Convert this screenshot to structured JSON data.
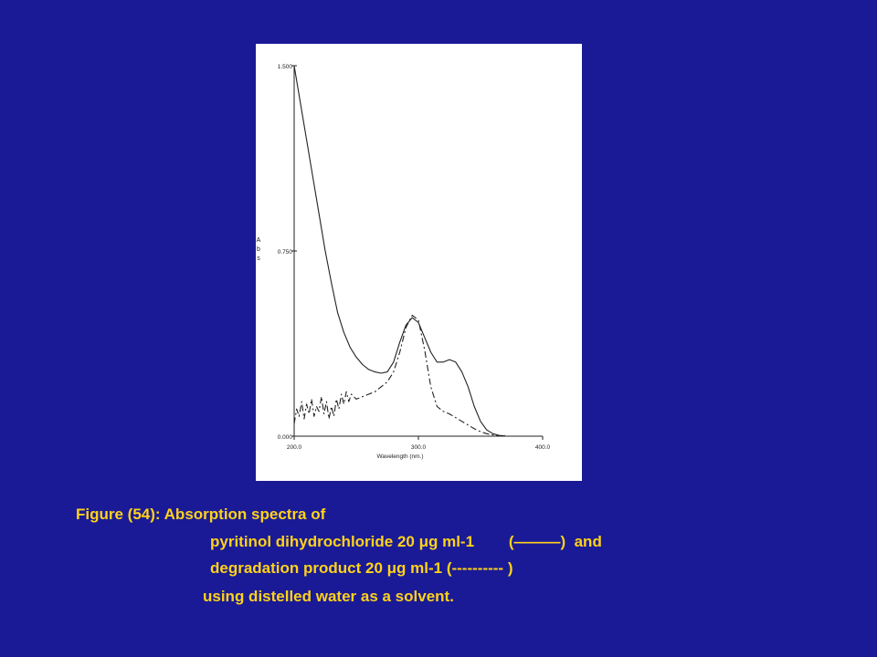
{
  "chart_data": {
    "type": "line",
    "xlabel": "Wavelength (nm.)",
    "ylabel": "Abs",
    "xlim": [
      200,
      400
    ],
    "ylim": [
      0,
      1.5
    ],
    "x_ticks": [
      "200.0",
      "300.0",
      "400.0"
    ],
    "y_ticks": [
      "0.000",
      "0.750",
      "1.500"
    ],
    "grid": false,
    "series": [
      {
        "style": "solid",
        "points": [
          [
            200,
            1.5
          ],
          [
            205,
            1.35
          ],
          [
            210,
            1.2
          ],
          [
            215,
            1.05
          ],
          [
            220,
            0.9
          ],
          [
            225,
            0.75
          ],
          [
            230,
            0.62
          ],
          [
            235,
            0.5
          ],
          [
            240,
            0.42
          ],
          [
            245,
            0.36
          ],
          [
            250,
            0.32
          ],
          [
            255,
            0.29
          ],
          [
            260,
            0.27
          ],
          [
            265,
            0.26
          ],
          [
            270,
            0.255
          ],
          [
            275,
            0.26
          ],
          [
            280,
            0.3
          ],
          [
            285,
            0.38
          ],
          [
            290,
            0.45
          ],
          [
            295,
            0.48
          ],
          [
            300,
            0.46
          ],
          [
            305,
            0.4
          ],
          [
            310,
            0.34
          ],
          [
            315,
            0.3
          ],
          [
            320,
            0.3
          ],
          [
            325,
            0.31
          ],
          [
            330,
            0.3
          ],
          [
            335,
            0.26
          ],
          [
            340,
            0.2
          ],
          [
            345,
            0.12
          ],
          [
            350,
            0.06
          ],
          [
            355,
            0.025
          ],
          [
            360,
            0.01
          ],
          [
            365,
            0.003
          ],
          [
            370,
            0.001
          ]
        ]
      },
      {
        "style": "dashed",
        "points": [
          [
            200,
            0.05
          ],
          [
            202,
            0.11
          ],
          [
            204,
            0.08
          ],
          [
            206,
            0.14
          ],
          [
            208,
            0.07
          ],
          [
            210,
            0.13
          ],
          [
            212,
            0.09
          ],
          [
            214,
            0.15
          ],
          [
            216,
            0.08
          ],
          [
            218,
            0.12
          ],
          [
            220,
            0.1
          ],
          [
            222,
            0.16
          ],
          [
            224,
            0.09
          ],
          [
            226,
            0.14
          ],
          [
            228,
            0.07
          ],
          [
            230,
            0.12
          ],
          [
            232,
            0.08
          ],
          [
            234,
            0.15
          ],
          [
            236,
            0.11
          ],
          [
            238,
            0.17
          ],
          [
            240,
            0.13
          ],
          [
            242,
            0.18
          ],
          [
            244,
            0.14
          ],
          [
            246,
            0.17
          ],
          [
            250,
            0.15
          ],
          [
            255,
            0.16
          ],
          [
            260,
            0.17
          ],
          [
            265,
            0.18
          ],
          [
            270,
            0.2
          ],
          [
            275,
            0.22
          ],
          [
            280,
            0.26
          ],
          [
            285,
            0.34
          ],
          [
            290,
            0.44
          ],
          [
            295,
            0.49
          ],
          [
            300,
            0.47
          ],
          [
            305,
            0.35
          ],
          [
            310,
            0.2
          ],
          [
            315,
            0.12
          ],
          [
            320,
            0.1
          ],
          [
            325,
            0.09
          ],
          [
            330,
            0.075
          ],
          [
            335,
            0.06
          ],
          [
            340,
            0.045
          ],
          [
            345,
            0.03
          ],
          [
            350,
            0.018
          ],
          [
            355,
            0.01
          ],
          [
            360,
            0.005
          ],
          [
            365,
            0.002
          ],
          [
            370,
            0.0
          ]
        ]
      }
    ]
  },
  "caption": {
    "line1": "Figure (54): Absorption spectra of",
    "line2": "pyritinol dihydrochloride 20 μg ml-1        (———)  and",
    "line3": "degradation product 20 μg ml-1 (---------- )",
    "line4": "using distelled water as a solvent."
  },
  "colors": {
    "background": "#1a1a96",
    "caption_text": "#ffd21a",
    "plot_line": "#222222"
  }
}
